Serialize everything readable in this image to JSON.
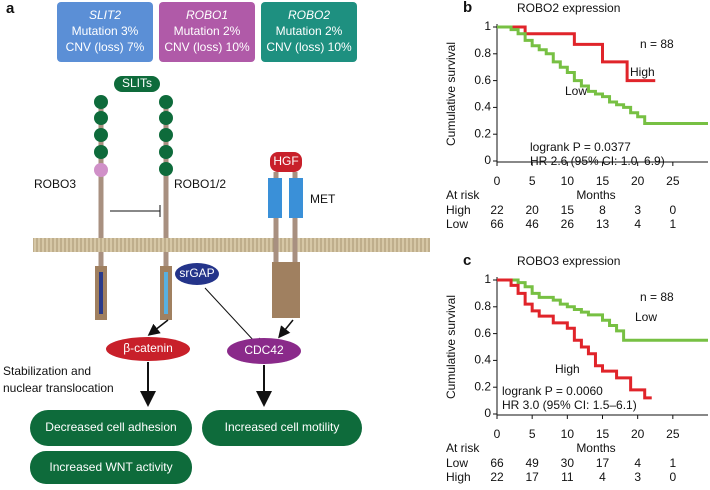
{
  "panel_a": {
    "letter": "a",
    "boxes": [
      {
        "gene": "SLIT2",
        "mutation": "Mutation 3%",
        "cnv": "CNV (loss) 7%"
      },
      {
        "gene": "ROBO1",
        "mutation": "Mutation 2%",
        "cnv": "CNV (loss) 10%"
      },
      {
        "gene": "ROBO2",
        "mutation": "Mutation 2%",
        "cnv": "CNV (loss) 10%"
      }
    ],
    "labels": {
      "slits": "SLITs",
      "robo3": "ROBO3",
      "robo12": "ROBO1/2",
      "hgf": "HGF",
      "met": "MET",
      "srgap": "srGAP",
      "bcatenin": "β-catenin",
      "cdc42": "CDC42",
      "stab1": "Stabilization and",
      "stab2": "nuclear translocation"
    },
    "outcomes": [
      "Decreased cell adhesion",
      "Increased WNT activity",
      "Increased cell motility"
    ]
  },
  "chart_data": [
    {
      "type": "line",
      "step": true,
      "letter": "b",
      "title": "ROBO2 expression",
      "ylabel": "Cumulative survival",
      "xlabel": "Months",
      "xlim": [
        0,
        30
      ],
      "ylim": [
        0,
        1
      ],
      "xticks": [
        0,
        5,
        10,
        15,
        20,
        25
      ],
      "yticks": [
        0,
        0.2,
        0.4,
        0.6,
        0.8,
        1
      ],
      "annotations": [
        "n = 88",
        "logrank P = 0.0377",
        "HR 2.6 (95% CI: 1.0–6.9)"
      ],
      "series": [
        {
          "name": "High",
          "color": "#e0242a",
          "x": [
            0,
            4,
            11,
            15,
            18.5,
            22.5
          ],
          "values": [
            1,
            0.95,
            0.87,
            0.74,
            0.6,
            0.6
          ]
        },
        {
          "name": "Low",
          "color": "#77c043",
          "x": [
            0,
            2,
            3,
            4,
            5,
            6,
            7,
            8,
            9,
            10,
            11,
            12,
            13,
            14,
            15,
            16,
            17,
            18,
            19,
            20,
            21,
            30
          ],
          "values": [
            1,
            0.98,
            0.95,
            0.9,
            0.86,
            0.83,
            0.8,
            0.74,
            0.7,
            0.66,
            0.6,
            0.56,
            0.52,
            0.5,
            0.48,
            0.44,
            0.42,
            0.4,
            0.36,
            0.33,
            0.28,
            0.28
          ]
        }
      ],
      "at_risk": {
        "label": "At risk",
        "rows": [
          {
            "name": "High",
            "values": [
              "22",
              "20",
              "15",
              "8",
              "3",
              "0"
            ]
          },
          {
            "name": "Low",
            "values": [
              "66",
              "46",
              "26",
              "13",
              "4",
              "1"
            ]
          }
        ]
      }
    },
    {
      "type": "line",
      "step": true,
      "letter": "c",
      "title": "ROBO3 expression",
      "ylabel": "Cumulative survival",
      "xlabel": "Months",
      "xlim": [
        0,
        30
      ],
      "ylim": [
        0,
        1
      ],
      "xticks": [
        0,
        5,
        10,
        15,
        20,
        25
      ],
      "yticks": [
        0,
        0.2,
        0.4,
        0.6,
        0.8,
        1
      ],
      "annotations": [
        "n = 88",
        "logrank P = 0.0060",
        "HR 3.0 (95% CI: 1.5–6.1)"
      ],
      "series": [
        {
          "name": "Low",
          "color": "#77c043",
          "x": [
            0,
            3,
            4,
            5,
            6,
            8,
            9,
            10,
            11,
            12,
            13,
            15,
            16,
            17,
            18,
            20,
            30
          ],
          "values": [
            1,
            0.98,
            0.95,
            0.9,
            0.87,
            0.85,
            0.82,
            0.8,
            0.78,
            0.76,
            0.74,
            0.7,
            0.66,
            0.62,
            0.55,
            0.55,
            0.55
          ]
        },
        {
          "name": "High",
          "color": "#e0242a",
          "x": [
            0,
            2,
            3,
            4,
            5,
            6,
            8,
            10,
            11,
            12,
            13,
            14,
            15,
            17,
            19,
            21,
            22
          ],
          "values": [
            1,
            0.96,
            0.9,
            0.82,
            0.77,
            0.73,
            0.68,
            0.64,
            0.55,
            0.5,
            0.45,
            0.36,
            0.32,
            0.27,
            0.18,
            0.12,
            0.12
          ]
        }
      ],
      "at_risk": {
        "label": "At risk",
        "rows": [
          {
            "name": "Low",
            "values": [
              "66",
              "49",
              "30",
              "17",
              "4",
              "1"
            ]
          },
          {
            "name": "High",
            "values": [
              "22",
              "17",
              "11",
              "4",
              "3",
              "0"
            ]
          }
        ]
      }
    }
  ]
}
